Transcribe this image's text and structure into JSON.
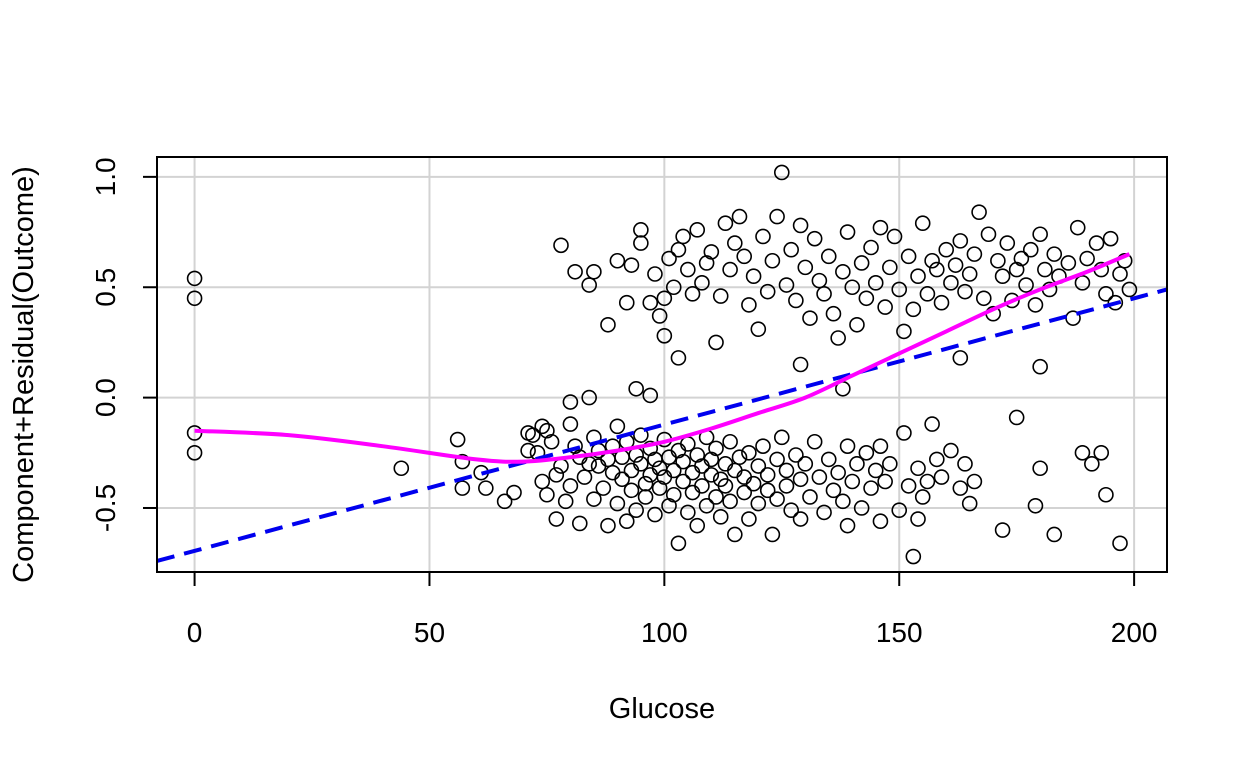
{
  "chart_data": {
    "type": "scatter",
    "title": "",
    "xlabel": "Glucose",
    "ylabel": "Component+Residual(Outcome)",
    "xlim": [
      -8,
      207
    ],
    "ylim": [
      -0.79,
      1.09
    ],
    "x_ticks": [
      0,
      50,
      100,
      150,
      200
    ],
    "y_ticks": [
      -0.5,
      0.0,
      0.5,
      1.0
    ],
    "x_tick_labels": [
      "0",
      "50",
      "100",
      "150",
      "200"
    ],
    "y_tick_labels": [
      "-0.5",
      "0.0",
      "0.5",
      "1.0"
    ],
    "grid": true,
    "colors": {
      "points": "#000000",
      "linear_fit": "#0000ee",
      "smooth_fit": "#ff00ff",
      "grid": "#d3d3d3"
    },
    "series": [
      {
        "kind": "points",
        "points": [
          [
            0,
            0.54
          ],
          [
            0,
            0.45
          ],
          [
            0,
            -0.16
          ],
          [
            0,
            -0.25
          ],
          [
            44,
            -0.32
          ],
          [
            56,
            -0.19
          ],
          [
            57,
            -0.29
          ],
          [
            57,
            -0.41
          ],
          [
            61,
            -0.34
          ],
          [
            62,
            -0.41
          ],
          [
            66,
            -0.47
          ],
          [
            68,
            -0.43
          ],
          [
            71,
            -0.16
          ],
          [
            71,
            -0.24
          ],
          [
            72,
            -0.17
          ],
          [
            73,
            -0.25
          ],
          [
            74,
            -0.13
          ],
          [
            74,
            -0.38
          ],
          [
            75,
            -0.44
          ],
          [
            75,
            -0.15
          ],
          [
            76,
            -0.2
          ],
          [
            77,
            -0.35
          ],
          [
            77,
            -0.55
          ],
          [
            78,
            -0.31
          ],
          [
            79,
            -0.47
          ],
          [
            80,
            -0.4
          ],
          [
            80,
            -0.12
          ],
          [
            81,
            -0.22
          ],
          [
            82,
            -0.57
          ],
          [
            82,
            -0.27
          ],
          [
            83,
            -0.36
          ],
          [
            84,
            -0.3
          ],
          [
            85,
            -0.46
          ],
          [
            85,
            -0.18
          ],
          [
            86,
            -0.31
          ],
          [
            86,
            -0.24
          ],
          [
            87,
            -0.41
          ],
          [
            88,
            -0.28
          ],
          [
            88,
            -0.58
          ],
          [
            89,
            -0.34
          ],
          [
            89,
            -0.22
          ],
          [
            90,
            -0.48
          ],
          [
            90,
            -0.13
          ],
          [
            91,
            -0.37
          ],
          [
            91,
            -0.27
          ],
          [
            92,
            -0.56
          ],
          [
            92,
            -0.2
          ],
          [
            93,
            -0.33
          ],
          [
            93,
            -0.42
          ],
          [
            94,
            -0.26
          ],
          [
            94,
            -0.51
          ],
          [
            95,
            -0.3
          ],
          [
            95,
            -0.17
          ],
          [
            96,
            -0.39
          ],
          [
            96,
            -0.45
          ],
          [
            97,
            -0.23
          ],
          [
            97,
            -0.35
          ],
          [
            98,
            -0.53
          ],
          [
            98,
            -0.28
          ],
          [
            99,
            -0.32
          ],
          [
            99,
            -0.41
          ],
          [
            100,
            -0.19
          ],
          [
            100,
            -0.36
          ],
          [
            101,
            -0.49
          ],
          [
            101,
            -0.27
          ],
          [
            102,
            -0.33
          ],
          [
            102,
            -0.44
          ],
          [
            103,
            -0.66
          ],
          [
            103,
            -0.24
          ],
          [
            104,
            -0.38
          ],
          [
            104,
            -0.29
          ],
          [
            105,
            -0.52
          ],
          [
            105,
            -0.21
          ],
          [
            106,
            -0.34
          ],
          [
            106,
            -0.43
          ],
          [
            107,
            -0.58
          ],
          [
            107,
            -0.26
          ],
          [
            108,
            -0.31
          ],
          [
            108,
            -0.4
          ],
          [
            109,
            -0.18
          ],
          [
            109,
            -0.49
          ],
          [
            110,
            -0.35
          ],
          [
            110,
            -0.28
          ],
          [
            111,
            -0.45
          ],
          [
            111,
            -0.23
          ],
          [
            112,
            -0.37
          ],
          [
            112,
            -0.54
          ],
          [
            113,
            -0.3
          ],
          [
            113,
            -0.4
          ],
          [
            114,
            -0.2
          ],
          [
            114,
            -0.47
          ],
          [
            115,
            -0.33
          ],
          [
            115,
            -0.62
          ],
          [
            116,
            -0.27
          ],
          [
            117,
            -0.43
          ],
          [
            117,
            -0.36
          ],
          [
            118,
            -0.55
          ],
          [
            118,
            -0.25
          ],
          [
            119,
            -0.39
          ],
          [
            120,
            -0.31
          ],
          [
            120,
            -0.48
          ],
          [
            121,
            -0.22
          ],
          [
            122,
            -0.42
          ],
          [
            122,
            -0.35
          ],
          [
            123,
            -0.62
          ],
          [
            124,
            -0.28
          ],
          [
            124,
            -0.46
          ],
          [
            125,
            -0.18
          ],
          [
            126,
            -0.4
          ],
          [
            126,
            -0.33
          ],
          [
            127,
            -0.51
          ],
          [
            128,
            -0.26
          ],
          [
            129,
            -0.37
          ],
          [
            129,
            -0.55
          ],
          [
            130,
            -0.3
          ],
          [
            131,
            -0.45
          ],
          [
            132,
            -0.2
          ],
          [
            133,
            -0.36
          ],
          [
            134,
            -0.52
          ],
          [
            135,
            -0.28
          ],
          [
            136,
            -0.42
          ],
          [
            137,
            -0.34
          ],
          [
            138,
            -0.47
          ],
          [
            139,
            -0.22
          ],
          [
            139,
            -0.58
          ],
          [
            140,
            -0.38
          ],
          [
            141,
            -0.3
          ],
          [
            142,
            -0.5
          ],
          [
            143,
            -0.25
          ],
          [
            144,
            -0.41
          ],
          [
            145,
            -0.33
          ],
          [
            146,
            -0.56
          ],
          [
            146,
            -0.22
          ],
          [
            147,
            -0.38
          ],
          [
            148,
            -0.3
          ],
          [
            150,
            -0.51
          ],
          [
            151,
            -0.16
          ],
          [
            152,
            -0.4
          ],
          [
            153,
            -0.72
          ],
          [
            154,
            -0.32
          ],
          [
            154,
            -0.55
          ],
          [
            155,
            -0.45
          ],
          [
            156,
            -0.38
          ],
          [
            157,
            -0.12
          ],
          [
            158,
            -0.28
          ],
          [
            159,
            -0.36
          ],
          [
            161,
            -0.24
          ],
          [
            163,
            -0.41
          ],
          [
            164,
            -0.3
          ],
          [
            165,
            -0.48
          ],
          [
            166,
            -0.38
          ],
          [
            172,
            -0.6
          ],
          [
            175,
            -0.09
          ],
          [
            179,
            -0.49
          ],
          [
            180,
            -0.32
          ],
          [
            183,
            -0.62
          ],
          [
            189,
            -0.25
          ],
          [
            191,
            -0.3
          ],
          [
            193,
            -0.25
          ],
          [
            194,
            -0.44
          ],
          [
            197,
            -0.66
          ],
          [
            80,
            -0.02
          ],
          [
            84,
            -0.0
          ],
          [
            94,
            0.04
          ],
          [
            97,
            0.01
          ],
          [
            138,
            0.04
          ],
          [
            180,
            0.14
          ],
          [
            163,
            0.18
          ],
          [
            129,
            0.15
          ],
          [
            103,
            0.18
          ],
          [
            100,
            0.28
          ],
          [
            78,
            0.69
          ],
          [
            81,
            0.57
          ],
          [
            84,
            0.51
          ],
          [
            85,
            0.57
          ],
          [
            88,
            0.33
          ],
          [
            90,
            0.62
          ],
          [
            92,
            0.43
          ],
          [
            93,
            0.6
          ],
          [
            95,
            0.7
          ],
          [
            95,
            0.76
          ],
          [
            97,
            0.43
          ],
          [
            98,
            0.56
          ],
          [
            99,
            0.37
          ],
          [
            100,
            0.45
          ],
          [
            101,
            0.63
          ],
          [
            102,
            0.5
          ],
          [
            103,
            0.67
          ],
          [
            104,
            0.73
          ],
          [
            105,
            0.58
          ],
          [
            106,
            0.47
          ],
          [
            107,
            0.76
          ],
          [
            108,
            0.52
          ],
          [
            109,
            0.61
          ],
          [
            110,
            0.66
          ],
          [
            111,
            0.25
          ],
          [
            112,
            0.46
          ],
          [
            113,
            0.79
          ],
          [
            114,
            0.58
          ],
          [
            115,
            0.7
          ],
          [
            116,
            0.82
          ],
          [
            117,
            0.64
          ],
          [
            118,
            0.42
          ],
          [
            119,
            0.55
          ],
          [
            120,
            0.31
          ],
          [
            121,
            0.73
          ],
          [
            122,
            0.48
          ],
          [
            123,
            0.62
          ],
          [
            124,
            0.82
          ],
          [
            125,
            1.02
          ],
          [
            126,
            0.51
          ],
          [
            127,
            0.67
          ],
          [
            128,
            0.44
          ],
          [
            129,
            0.78
          ],
          [
            130,
            0.59
          ],
          [
            131,
            0.36
          ],
          [
            132,
            0.72
          ],
          [
            133,
            0.53
          ],
          [
            134,
            0.47
          ],
          [
            135,
            0.64
          ],
          [
            136,
            0.38
          ],
          [
            137,
            0.27
          ],
          [
            138,
            0.57
          ],
          [
            139,
            0.75
          ],
          [
            140,
            0.5
          ],
          [
            141,
            0.33
          ],
          [
            142,
            0.61
          ],
          [
            143,
            0.45
          ],
          [
            144,
            0.68
          ],
          [
            145,
            0.52
          ],
          [
            146,
            0.77
          ],
          [
            147,
            0.41
          ],
          [
            148,
            0.59
          ],
          [
            149,
            0.73
          ],
          [
            150,
            0.49
          ],
          [
            151,
            0.3
          ],
          [
            152,
            0.64
          ],
          [
            153,
            0.4
          ],
          [
            154,
            0.55
          ],
          [
            155,
            0.79
          ],
          [
            156,
            0.47
          ],
          [
            157,
            0.62
          ],
          [
            158,
            0.58
          ],
          [
            159,
            0.43
          ],
          [
            160,
            0.67
          ],
          [
            161,
            0.52
          ],
          [
            162,
            0.6
          ],
          [
            163,
            0.71
          ],
          [
            164,
            0.48
          ],
          [
            165,
            0.56
          ],
          [
            166,
            0.65
          ],
          [
            167,
            0.84
          ],
          [
            168,
            0.45
          ],
          [
            169,
            0.74
          ],
          [
            170,
            0.38
          ],
          [
            171,
            0.62
          ],
          [
            172,
            0.55
          ],
          [
            173,
            0.7
          ],
          [
            174,
            0.44
          ],
          [
            175,
            0.58
          ],
          [
            176,
            0.63
          ],
          [
            177,
            0.51
          ],
          [
            178,
            0.67
          ],
          [
            179,
            0.42
          ],
          [
            180,
            0.74
          ],
          [
            181,
            0.58
          ],
          [
            182,
            0.49
          ],
          [
            183,
            0.65
          ],
          [
            184,
            0.55
          ],
          [
            186,
            0.61
          ],
          [
            187,
            0.36
          ],
          [
            188,
            0.77
          ],
          [
            189,
            0.52
          ],
          [
            190,
            0.63
          ],
          [
            192,
            0.7
          ],
          [
            193,
            0.58
          ],
          [
            194,
            0.47
          ],
          [
            195,
            0.72
          ],
          [
            196,
            0.43
          ],
          [
            197,
            0.56
          ],
          [
            198,
            0.62
          ],
          [
            199,
            0.49
          ]
        ]
      },
      {
        "kind": "linear_fit",
        "x": [
          -8,
          207
        ],
        "y": [
          -0.74,
          0.49
        ]
      },
      {
        "kind": "smooth_fit",
        "x": [
          0,
          20,
          40,
          60,
          70,
          80,
          90,
          100,
          110,
          120,
          130,
          140,
          150,
          160,
          170,
          180,
          190,
          199
        ],
        "y": [
          -0.15,
          -0.17,
          -0.22,
          -0.28,
          -0.29,
          -0.27,
          -0.24,
          -0.2,
          -0.14,
          -0.07,
          0.0,
          0.1,
          0.2,
          0.3,
          0.4,
          0.49,
          0.57,
          0.65
        ]
      }
    ]
  }
}
